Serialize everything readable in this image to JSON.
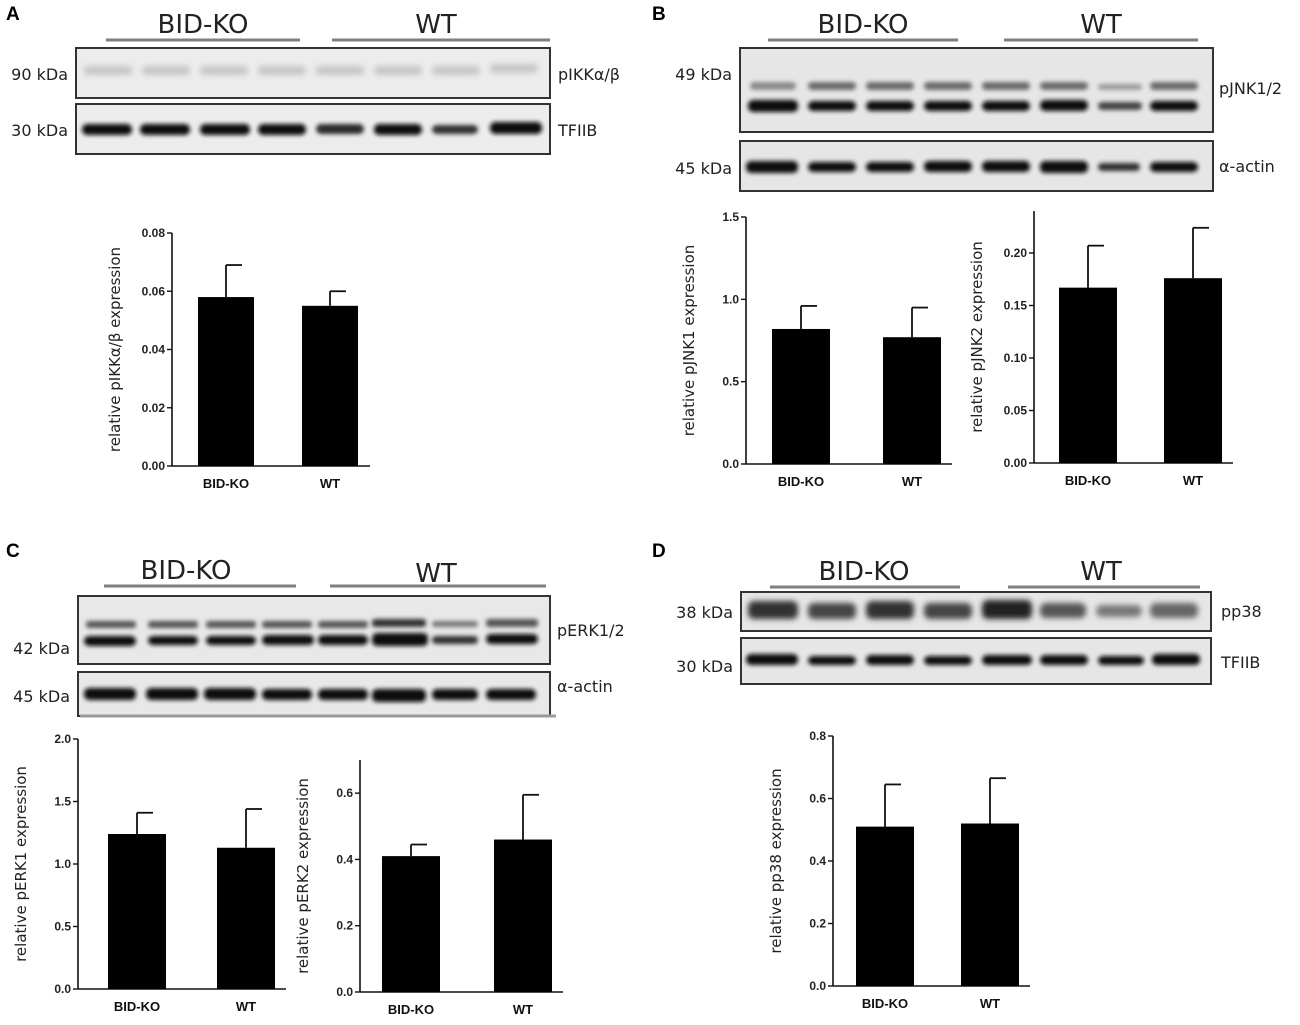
{
  "panels": [
    {
      "label": "A",
      "blot": {
        "groups": [
          "BID-KO",
          "WT"
        ],
        "bands": [
          {
            "kda": "90 kDa",
            "protein": "pIKKα/β"
          },
          {
            "kda": "30 kDa",
            "protein": "TFIIB"
          }
        ]
      }
    },
    {
      "label": "B",
      "blot": {
        "groups": [
          "BID-KO",
          "WT"
        ],
        "bands": [
          {
            "kda": "49 kDa",
            "protein": "pJNK1/2"
          },
          {
            "kda": "45 kDa",
            "protein": "α-actin"
          }
        ]
      }
    },
    {
      "label": "C",
      "blot": {
        "groups": [
          "BID-KO",
          "WT"
        ],
        "bands": [
          {
            "kda": "42 kDa",
            "protein": "pERK1/2"
          },
          {
            "kda": "45 kDa",
            "protein": "α-actin"
          }
        ]
      }
    },
    {
      "label": "D",
      "blot": {
        "groups": [
          "BID-KO",
          "WT"
        ],
        "bands": [
          {
            "kda": "38 kDa",
            "protein": "pp38"
          },
          {
            "kda": "30 kDa",
            "protein": "TFIIB"
          }
        ]
      }
    }
  ],
  "chart_data": [
    {
      "panel": "A",
      "type": "bar",
      "categories": [
        "BID-KO",
        "WT"
      ],
      "values": [
        0.058,
        0.055
      ],
      "errors": [
        0.011,
        0.005
      ],
      "ylabel": "relative pIKKα/β expression",
      "ylim": [
        0,
        0.08
      ],
      "yticks": [
        "0.00",
        "0.02",
        "0.04",
        "0.06",
        "0.08"
      ],
      "grid": false
    },
    {
      "panel": "B",
      "type": "bar",
      "categories": [
        "BID-KO",
        "WT"
      ],
      "values": [
        0.82,
        0.77
      ],
      "errors": [
        0.14,
        0.18
      ],
      "ylabel": "relative pJNK1 expression",
      "ylim": [
        0,
        1.5
      ],
      "yticks": [
        "0.0",
        "0.5",
        "1.0",
        "1.5"
      ],
      "grid": false
    },
    {
      "panel": "B",
      "type": "bar",
      "categories": [
        "BID-KO",
        "WT"
      ],
      "values": [
        0.167,
        0.176
      ],
      "errors": [
        0.04,
        0.048
      ],
      "ylabel": "relative pJNK2 expression",
      "ylim": [
        0,
        0.24
      ],
      "yticks": [
        "0.00",
        "0.05",
        "0.10",
        "0.15",
        "0.20"
      ],
      "grid": false
    },
    {
      "panel": "C",
      "type": "bar",
      "categories": [
        "BID-KO",
        "WT"
      ],
      "values": [
        1.24,
        1.13
      ],
      "errors": [
        0.17,
        0.31
      ],
      "ylabel": "relative pERK1 expression",
      "ylim": [
        0,
        2.0
      ],
      "yticks": [
        "0.0",
        "0.5",
        "1.0",
        "1.5",
        "2.0"
      ],
      "grid": false
    },
    {
      "panel": "C",
      "type": "bar",
      "categories": [
        "BID-KO",
        "WT"
      ],
      "values": [
        0.41,
        0.46
      ],
      "errors": [
        0.035,
        0.135
      ],
      "ylabel": "relative pERK2 expression",
      "ylim": [
        0,
        0.7
      ],
      "yticks": [
        "0.0",
        "0.2",
        "0.4",
        "0.6"
      ],
      "grid": false
    },
    {
      "panel": "D",
      "type": "bar",
      "categories": [
        "BID-KO",
        "WT"
      ],
      "values": [
        0.51,
        0.52
      ],
      "errors": [
        0.135,
        0.145
      ],
      "ylabel": "relative pp38 expression",
      "ylim": [
        0,
        0.8
      ],
      "yticks": [
        "0.0",
        "0.2",
        "0.4",
        "0.6",
        "0.8"
      ],
      "grid": false
    }
  ]
}
